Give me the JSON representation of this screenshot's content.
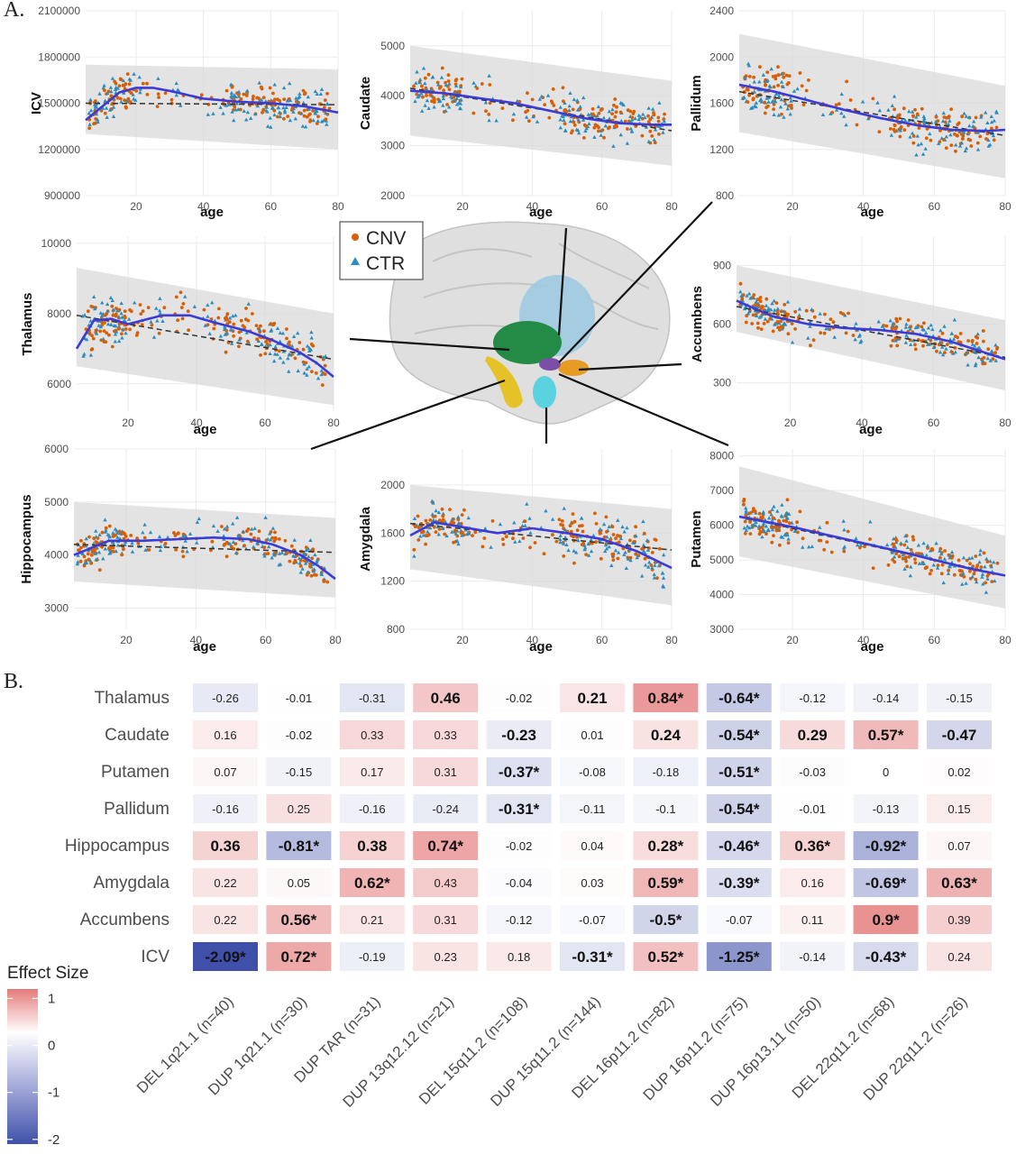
{
  "panels": {
    "a_label": "A.",
    "b_label": "B."
  },
  "colors": {
    "cnv": "#d95f02",
    "ctr": "#2b8cbe",
    "fit": "#3b3bd8",
    "band": "#d9d9d9"
  },
  "legend": {
    "cnv": "CNV",
    "ctr": "CTR"
  },
  "chart_data": [
    {
      "type": "scatter",
      "region": "ICV",
      "xlabel": "age",
      "ylabel": "ICV",
      "xlim": [
        5,
        80
      ],
      "ylim": [
        900000,
        2100000
      ],
      "xticks": [
        20,
        40,
        60,
        80
      ],
      "yticks": [
        900000,
        1200000,
        1500000,
        1800000,
        2100000
      ],
      "smooth": [
        [
          5,
          1390000
        ],
        [
          10,
          1480000
        ],
        [
          15,
          1570000
        ],
        [
          20,
          1600000
        ],
        [
          25,
          1600000
        ],
        [
          30,
          1580000
        ],
        [
          40,
          1530000
        ],
        [
          50,
          1510000
        ],
        [
          60,
          1500000
        ],
        [
          70,
          1480000
        ],
        [
          80,
          1440000
        ]
      ],
      "linear": [
        [
          5,
          1500000
        ],
        [
          80,
          1490000
        ]
      ],
      "band": [
        [
          5,
          1300000,
          1750000
        ],
        [
          80,
          1200000,
          1720000
        ]
      ]
    },
    {
      "type": "scatter",
      "region": "Caudate",
      "xlabel": "age",
      "ylabel": "Caudate",
      "xlim": [
        5,
        80
      ],
      "ylim": [
        2000,
        5700
      ],
      "xticks": [
        20,
        40,
        60,
        80
      ],
      "yticks": [
        2000,
        3000,
        4000,
        5000
      ],
      "smooth": [
        [
          5,
          4100
        ],
        [
          15,
          4050
        ],
        [
          25,
          3950
        ],
        [
          35,
          3850
        ],
        [
          45,
          3700
        ],
        [
          55,
          3550
        ],
        [
          65,
          3450
        ],
        [
          75,
          3420
        ],
        [
          80,
          3420
        ]
      ],
      "linear": [
        [
          5,
          4150
        ],
        [
          80,
          3300
        ]
      ],
      "band": [
        [
          5,
          3200,
          5000
        ],
        [
          80,
          2600,
          4300
        ]
      ]
    },
    {
      "type": "scatter",
      "region": "Pallidum",
      "xlabel": "age",
      "ylabel": "Pallidum",
      "xlim": [
        5,
        80
      ],
      "ylim": [
        800,
        2400
      ],
      "xticks": [
        20,
        40,
        60,
        80
      ],
      "yticks": [
        800,
        1200,
        1600,
        2000,
        2400
      ],
      "smooth": [
        [
          5,
          1760
        ],
        [
          15,
          1700
        ],
        [
          25,
          1620
        ],
        [
          35,
          1540
        ],
        [
          45,
          1470
        ],
        [
          55,
          1410
        ],
        [
          65,
          1370
        ],
        [
          75,
          1360
        ],
        [
          80,
          1370
        ]
      ],
      "linear": [
        [
          5,
          1700
        ],
        [
          80,
          1320
        ]
      ],
      "band": [
        [
          5,
          1350,
          2200
        ],
        [
          80,
          950,
          1750
        ]
      ]
    },
    {
      "type": "scatter",
      "region": "Thalamus",
      "xlabel": "age",
      "ylabel": "Thalamus",
      "xlim": [
        5,
        80
      ],
      "ylim": [
        5200,
        10200
      ],
      "xticks": [
        20,
        40,
        60,
        80
      ],
      "yticks": [
        6000,
        8000,
        10000
      ],
      "smooth": [
        [
          5,
          7000
        ],
        [
          10,
          7800
        ],
        [
          15,
          7850
        ],
        [
          20,
          7700
        ],
        [
          30,
          7950
        ],
        [
          38,
          7950
        ],
        [
          45,
          7750
        ],
        [
          55,
          7500
        ],
        [
          62,
          7250
        ],
        [
          70,
          6900
        ],
        [
          75,
          6600
        ],
        [
          80,
          6200
        ]
      ],
      "linear": [
        [
          5,
          7950
        ],
        [
          80,
          6700
        ]
      ],
      "band": [
        [
          5,
          6500,
          9300
        ],
        [
          80,
          5400,
          8000
        ]
      ]
    },
    {
      "type": "scatter",
      "region": "Accumbens",
      "xlabel": "age",
      "ylabel": "Accumbens",
      "xlim": [
        5,
        80
      ],
      "ylim": [
        150,
        1050
      ],
      "xticks": [
        20,
        40,
        60,
        80
      ],
      "yticks": [
        300,
        600,
        900
      ],
      "smooth": [
        [
          5,
          720
        ],
        [
          15,
          640
        ],
        [
          25,
          600
        ],
        [
          35,
          580
        ],
        [
          45,
          570
        ],
        [
          55,
          550
        ],
        [
          65,
          510
        ],
        [
          75,
          450
        ],
        [
          80,
          420
        ]
      ],
      "linear": [
        [
          5,
          690
        ],
        [
          80,
          430
        ]
      ],
      "band": [
        [
          5,
          560,
          900
        ],
        [
          80,
          260,
          620
        ]
      ]
    },
    {
      "type": "scatter",
      "region": "Hippocampus",
      "xlabel": "age",
      "ylabel": "Hippocampus",
      "xlim": [
        5,
        80
      ],
      "ylim": [
        2600,
        6000
      ],
      "xticks": [
        20,
        40,
        60,
        80
      ],
      "yticks": [
        3000,
        4000,
        5000,
        6000
      ],
      "smooth": [
        [
          5,
          4000
        ],
        [
          15,
          4270
        ],
        [
          25,
          4270
        ],
        [
          35,
          4300
        ],
        [
          45,
          4330
        ],
        [
          55,
          4300
        ],
        [
          62,
          4200
        ],
        [
          70,
          4000
        ],
        [
          75,
          3800
        ],
        [
          80,
          3550
        ]
      ],
      "linear": [
        [
          5,
          4200
        ],
        [
          80,
          4050
        ]
      ],
      "band": [
        [
          5,
          3500,
          5000
        ],
        [
          80,
          3200,
          4700
        ]
      ]
    },
    {
      "type": "scatter",
      "region": "Amygdala",
      "xlabel": "age",
      "ylabel": "Amygdala",
      "xlim": [
        5,
        80
      ],
      "ylim": [
        800,
        2300
      ],
      "xticks": [
        20,
        40,
        60,
        80
      ],
      "yticks": [
        800,
        1200,
        1600,
        2000
      ],
      "smooth": [
        [
          5,
          1580
        ],
        [
          12,
          1690
        ],
        [
          20,
          1650
        ],
        [
          30,
          1600
        ],
        [
          40,
          1640
        ],
        [
          50,
          1600
        ],
        [
          60,
          1550
        ],
        [
          70,
          1450
        ],
        [
          80,
          1310
        ]
      ],
      "linear": [
        [
          5,
          1680
        ],
        [
          80,
          1460
        ]
      ],
      "band": [
        [
          5,
          1300,
          2000
        ],
        [
          80,
          1000,
          1800
        ]
      ]
    },
    {
      "type": "scatter",
      "region": "Putamen",
      "xlabel": "age",
      "ylabel": "Putamen",
      "xlim": [
        5,
        80
      ],
      "ylim": [
        3000,
        8200
      ],
      "xticks": [
        20,
        40,
        60,
        80
      ],
      "yticks": [
        3000,
        4000,
        5000,
        6000,
        7000,
        8000
      ],
      "smooth": [
        [
          5,
          6250
        ],
        [
          20,
          5950
        ],
        [
          35,
          5600
        ],
        [
          50,
          5250
        ],
        [
          60,
          5000
        ],
        [
          70,
          4750
        ],
        [
          80,
          4550
        ]
      ],
      "linear": [
        [
          5,
          6250
        ],
        [
          80,
          4550
        ]
      ],
      "band": [
        [
          5,
          5100,
          7700
        ],
        [
          80,
          3600,
          5700
        ]
      ]
    },
    {
      "type": "heatmap",
      "rows": [
        "Thalamus",
        "Caudate",
        "Putamen",
        "Pallidum",
        "Hippocampus",
        "Amygdala",
        "Accumbens",
        "ICV"
      ],
      "columns": [
        "DEL 1q21.1 (n=40)",
        "DUP 1q21.1 (n=30)",
        "DUP TAR (n=31)",
        "DUP 13q12.12 (n=21)",
        "DEL 15q11.2 (n=108)",
        "DUP 15q11.2 (n=144)",
        "DEL 16p11.2 (n=82)",
        "DUP 16p11.2 (n=75)",
        "DUP 16p13.11 (n=50)",
        "DEL 22q11.2 (n=68)",
        "DUP 22q11.2 (n=26)"
      ],
      "cells": [
        [
          {
            "v": "-0.26",
            "n": -0.26,
            "b": false
          },
          {
            "v": "-0.01",
            "n": -0.01,
            "b": false
          },
          {
            "v": "-0.31",
            "n": -0.31,
            "b": false
          },
          {
            "v": "0.46",
            "n": 0.46,
            "b": true
          },
          {
            "v": "-0.02",
            "n": -0.02,
            "b": false
          },
          {
            "v": "0.21",
            "n": 0.21,
            "b": true
          },
          {
            "v": "0.84*",
            "n": 0.84,
            "b": true
          },
          {
            "v": "-0.64*",
            "n": -0.64,
            "b": true
          },
          {
            "v": "-0.12",
            "n": -0.12,
            "b": false
          },
          {
            "v": "-0.14",
            "n": -0.14,
            "b": false
          },
          {
            "v": "-0.15",
            "n": -0.15,
            "b": false
          }
        ],
        [
          {
            "v": "0.16",
            "n": 0.16,
            "b": false
          },
          {
            "v": "-0.02",
            "n": -0.02,
            "b": false
          },
          {
            "v": "0.33",
            "n": 0.33,
            "b": false
          },
          {
            "v": "0.33",
            "n": 0.33,
            "b": false
          },
          {
            "v": "-0.23",
            "n": -0.23,
            "b": true
          },
          {
            "v": "0.01",
            "n": 0.01,
            "b": false
          },
          {
            "v": "0.24",
            "n": 0.24,
            "b": true
          },
          {
            "v": "-0.54*",
            "n": -0.54,
            "b": true
          },
          {
            "v": "0.29",
            "n": 0.29,
            "b": true
          },
          {
            "v": "0.57*",
            "n": 0.57,
            "b": true
          },
          {
            "v": "-0.47",
            "n": -0.47,
            "b": true
          }
        ],
        [
          {
            "v": "0.07",
            "n": 0.07,
            "b": false
          },
          {
            "v": "-0.15",
            "n": -0.15,
            "b": false
          },
          {
            "v": "0.17",
            "n": 0.17,
            "b": false
          },
          {
            "v": "0.31",
            "n": 0.31,
            "b": false
          },
          {
            "v": "-0.37*",
            "n": -0.37,
            "b": true
          },
          {
            "v": "-0.08",
            "n": -0.08,
            "b": false
          },
          {
            "v": "-0.18",
            "n": -0.18,
            "b": false
          },
          {
            "v": "-0.51*",
            "n": -0.51,
            "b": true
          },
          {
            "v": "-0.03",
            "n": -0.03,
            "b": false
          },
          {
            "v": "0",
            "n": 0,
            "b": false
          },
          {
            "v": "0.02",
            "n": 0.02,
            "b": false
          }
        ],
        [
          {
            "v": "-0.16",
            "n": -0.16,
            "b": false
          },
          {
            "v": "0.25",
            "n": 0.25,
            "b": false
          },
          {
            "v": "-0.16",
            "n": -0.16,
            "b": false
          },
          {
            "v": "-0.24",
            "n": -0.24,
            "b": false
          },
          {
            "v": "-0.31*",
            "n": -0.31,
            "b": true
          },
          {
            "v": "-0.11",
            "n": -0.11,
            "b": false
          },
          {
            "v": "-0.1",
            "n": -0.1,
            "b": false
          },
          {
            "v": "-0.54*",
            "n": -0.54,
            "b": true
          },
          {
            "v": "-0.01",
            "n": -0.01,
            "b": false
          },
          {
            "v": "-0.13",
            "n": -0.13,
            "b": false
          },
          {
            "v": "0.15",
            "n": 0.15,
            "b": false
          }
        ],
        [
          {
            "v": "0.36",
            "n": 0.36,
            "b": true
          },
          {
            "v": "-0.81*",
            "n": -0.81,
            "b": true
          },
          {
            "v": "0.38",
            "n": 0.38,
            "b": true
          },
          {
            "v": "0.74*",
            "n": 0.74,
            "b": true
          },
          {
            "v": "-0.02",
            "n": -0.02,
            "b": false
          },
          {
            "v": "0.04",
            "n": 0.04,
            "b": false
          },
          {
            "v": "0.28*",
            "n": 0.28,
            "b": true
          },
          {
            "v": "-0.46*",
            "n": -0.46,
            "b": true
          },
          {
            "v": "0.36*",
            "n": 0.36,
            "b": true
          },
          {
            "v": "-0.92*",
            "n": -0.92,
            "b": true
          },
          {
            "v": "0.07",
            "n": 0.07,
            "b": false
          }
        ],
        [
          {
            "v": "0.22",
            "n": 0.22,
            "b": false
          },
          {
            "v": "0.05",
            "n": 0.05,
            "b": false
          },
          {
            "v": "0.62*",
            "n": 0.62,
            "b": true
          },
          {
            "v": "0.43",
            "n": 0.43,
            "b": false
          },
          {
            "v": "-0.04",
            "n": -0.04,
            "b": false
          },
          {
            "v": "0.03",
            "n": 0.03,
            "b": false
          },
          {
            "v": "0.59*",
            "n": 0.59,
            "b": true
          },
          {
            "v": "-0.39*",
            "n": -0.39,
            "b": true
          },
          {
            "v": "0.16",
            "n": 0.16,
            "b": false
          },
          {
            "v": "-0.69*",
            "n": -0.69,
            "b": true
          },
          {
            "v": "0.63*",
            "n": 0.63,
            "b": true
          }
        ],
        [
          {
            "v": "0.22",
            "n": 0.22,
            "b": false
          },
          {
            "v": "0.56*",
            "n": 0.56,
            "b": true
          },
          {
            "v": "0.21",
            "n": 0.21,
            "b": false
          },
          {
            "v": "0.31",
            "n": 0.31,
            "b": false
          },
          {
            "v": "-0.12",
            "n": -0.12,
            "b": false
          },
          {
            "v": "-0.07",
            "n": -0.07,
            "b": false
          },
          {
            "v": "-0.5*",
            "n": -0.5,
            "b": true
          },
          {
            "v": "-0.07",
            "n": -0.07,
            "b": false
          },
          {
            "v": "0.11",
            "n": 0.11,
            "b": false
          },
          {
            "v": "0.9*",
            "n": 0.9,
            "b": true
          },
          {
            "v": "0.39",
            "n": 0.39,
            "b": false
          }
        ],
        [
          {
            "v": "-2.09*",
            "n": -2.09,
            "b": true
          },
          {
            "v": "0.72*",
            "n": 0.72,
            "b": true
          },
          {
            "v": "-0.19",
            "n": -0.19,
            "b": false
          },
          {
            "v": "0.23",
            "n": 0.23,
            "b": false
          },
          {
            "v": "0.18",
            "n": 0.18,
            "b": false
          },
          {
            "v": "-0.31*",
            "n": -0.31,
            "b": true
          },
          {
            "v": "0.52*",
            "n": 0.52,
            "b": true
          },
          {
            "v": "-1.25*",
            "n": -1.25,
            "b": true
          },
          {
            "v": "-0.14",
            "n": -0.14,
            "b": false
          },
          {
            "v": "-0.43*",
            "n": -0.43,
            "b": true
          },
          {
            "v": "0.24",
            "n": 0.24,
            "b": false
          }
        ]
      ],
      "legend": {
        "title": "Effect Size",
        "ticks": [
          "1",
          "0",
          "-1",
          "-2"
        ],
        "range": [
          -2.1,
          1.2
        ]
      }
    }
  ]
}
